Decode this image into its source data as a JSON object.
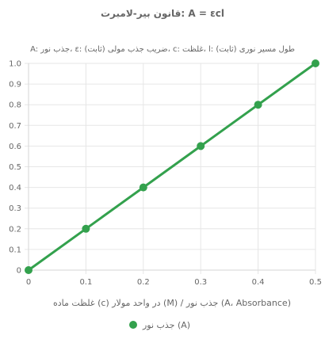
{
  "chart_data": {
    "type": "line",
    "title": "قانون بیر-لامبرت: A = εcl",
    "subtitle": "A: جذب نور، ε: ضریب جذب مولی (ثابت)، c: غلظت، l: طول مسیر نوری (ثابت)",
    "xlabel": "غلظت ماده (c) در واحد مولار (M) / جذب نور (A، Absorbance)",
    "ylabel": "",
    "xlim": [
      0,
      0.5
    ],
    "ylim": [
      0,
      1.0
    ],
    "x_ticks": [
      0,
      0.1,
      0.2,
      0.3,
      0.4,
      0.5
    ],
    "x_tick_labels": [
      "0",
      "0.1",
      "0.2",
      "0.3",
      "0.4",
      "0.5"
    ],
    "y_ticks": [
      0,
      0.1,
      0.2,
      0.3,
      0.4,
      0.5,
      0.6,
      0.7,
      0.8,
      0.9,
      1.0
    ],
    "y_tick_labels": [
      "0",
      "0.1",
      "0.2",
      "0.3",
      "0.4",
      "0.5",
      "0.6",
      "0.7",
      "0.8",
      "0.9",
      "1.0"
    ],
    "grid": true,
    "legend_position": "bottom",
    "series": [
      {
        "name": "جذب نور (A)",
        "color": "#33a14d",
        "x": [
          0,
          0.1,
          0.2,
          0.3,
          0.4,
          0.5
        ],
        "y": [
          0,
          0.2,
          0.4,
          0.6,
          0.8,
          1.0
        ]
      }
    ]
  }
}
